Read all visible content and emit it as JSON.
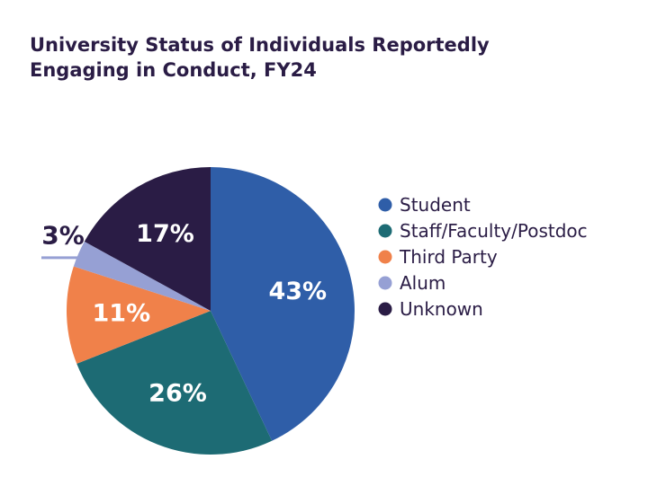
{
  "chart_data": {
    "type": "pie",
    "title": "University Status of Individuals Reportedly Engaging in Conduct, FY24",
    "slices": [
      {
        "label": "Student",
        "value": 43,
        "display": "43%",
        "color": "#2f5ea8"
      },
      {
        "label": "Staff/Faculty/Postdoc",
        "value": 26,
        "display": "26%",
        "color": "#1d6b74"
      },
      {
        "label": "Third Party",
        "value": 11,
        "display": "11%",
        "color": "#f0814a"
      },
      {
        "label": "Alum",
        "value": 3,
        "display": "3%",
        "color": "#96a0d4"
      },
      {
        "label": "Unknown",
        "value": 17,
        "display": "17%",
        "color": "#2a1c45"
      }
    ],
    "legend_position": "right"
  },
  "colors": {
    "title": "#2a1c45",
    "label_inside": "#ffffff",
    "label_outside": "#2a1c45",
    "legend_text": "#2a1c45"
  }
}
